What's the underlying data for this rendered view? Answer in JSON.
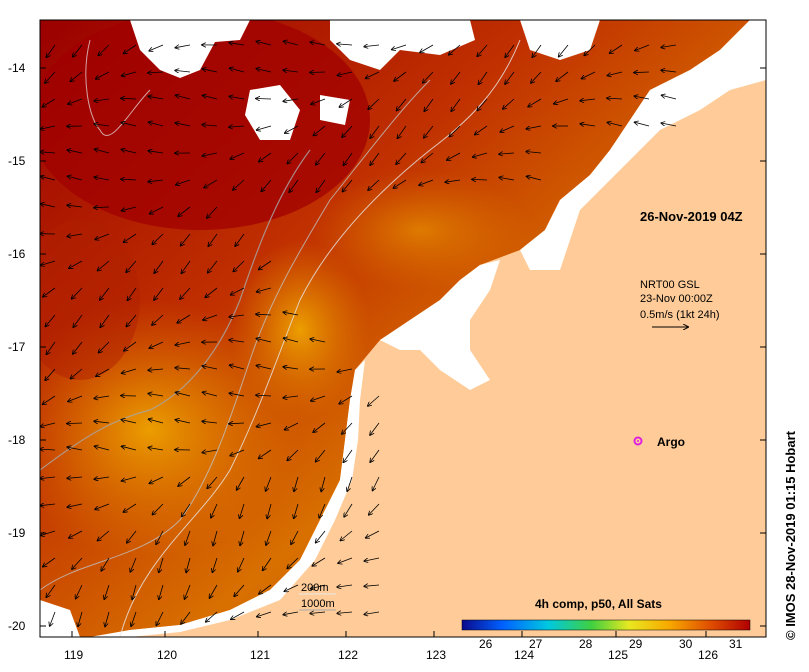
{
  "map": {
    "timestamp": "26-Nov-2019 04Z",
    "current_source": {
      "product": "NRT00 GSL",
      "date": "23-Nov 00:00Z",
      "scale": "0.5m/s (1kt 24h)"
    },
    "argo_label": "Argo",
    "depth_contours": [
      "200m",
      "1000m"
    ],
    "colorbar": {
      "title": "4h comp, p50, All Sats",
      "ticks": [
        "26",
        "27",
        "28",
        "29",
        "30",
        "31"
      ],
      "colors": [
        "#0a0a8c",
        "#0060ff",
        "#00c8e0",
        "#40d040",
        "#e8e820",
        "#f8a800",
        "#e05000",
        "#b00000"
      ]
    },
    "lat_ticks": [
      "-14",
      "-15",
      "-16",
      "-17",
      "-18",
      "-19",
      "-20"
    ],
    "lon_ticks": [
      "119",
      "120",
      "121",
      "122",
      "123",
      "124",
      "125",
      "126"
    ],
    "credit": "© IMOS 28-Nov-2019 01:15 Hobart",
    "colors": {
      "land": "#ffcc99",
      "warm": "#a80000",
      "mid": "#d06000",
      "cool": "#e8a000",
      "argo": "#e020e0"
    }
  }
}
